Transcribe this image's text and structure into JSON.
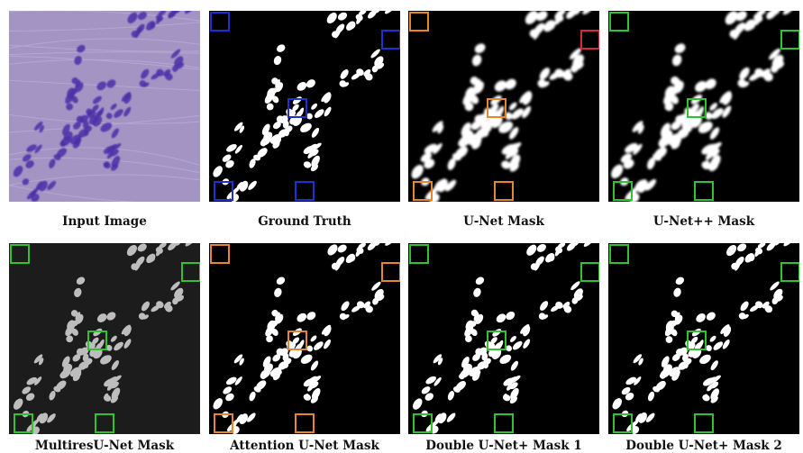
{
  "figure": {
    "panels": [
      {
        "id": "input",
        "caption": "Input Image",
        "kind": "histology"
      },
      {
        "id": "gt",
        "caption": "Ground Truth",
        "kind": "mask",
        "box_color": "#1f2fd8",
        "bg": "#000000",
        "fg": "#ffffff"
      },
      {
        "id": "unet",
        "caption": "U-Net Mask",
        "kind": "mask",
        "box_color": "#e8862a",
        "bg": "#000000",
        "fg": "#ffffff",
        "blur": true
      },
      {
        "id": "unetpp",
        "caption": "U-Net++ Mask",
        "kind": "mask",
        "box_color": "#2ec42e",
        "bg": "#000000",
        "fg": "#ffffff",
        "blur": true
      },
      {
        "id": "multires",
        "caption": "MultiresU-Net Mask",
        "kind": "mask",
        "box_color": "#2ec42e",
        "bg": "#1c1c1c",
        "fg": "#bdbdbd"
      },
      {
        "id": "attention",
        "caption": "Attention U-Net Mask",
        "kind": "mask",
        "box_color": "#e8862a",
        "bg": "#000000",
        "fg": "#ffffff"
      },
      {
        "id": "double1",
        "caption": "Double U-Net+ Mask 1",
        "kind": "mask",
        "box_color": "#2ec42e",
        "bg": "#000000",
        "fg": "#ffffff"
      },
      {
        "id": "double2",
        "caption": "Double U-Net+ Mask 2",
        "kind": "mask",
        "box_color": "#2ec42e",
        "bg": "#000000",
        "fg": "#ffffff"
      }
    ],
    "accent_colors": {
      "blue_box": "#1f2fd8",
      "orange_box": "#e8862a",
      "green_box": "#2ec42e",
      "red_box": "#d8283a",
      "tissue": "#a394c4",
      "nuclei": "#4a2ea8"
    }
  }
}
